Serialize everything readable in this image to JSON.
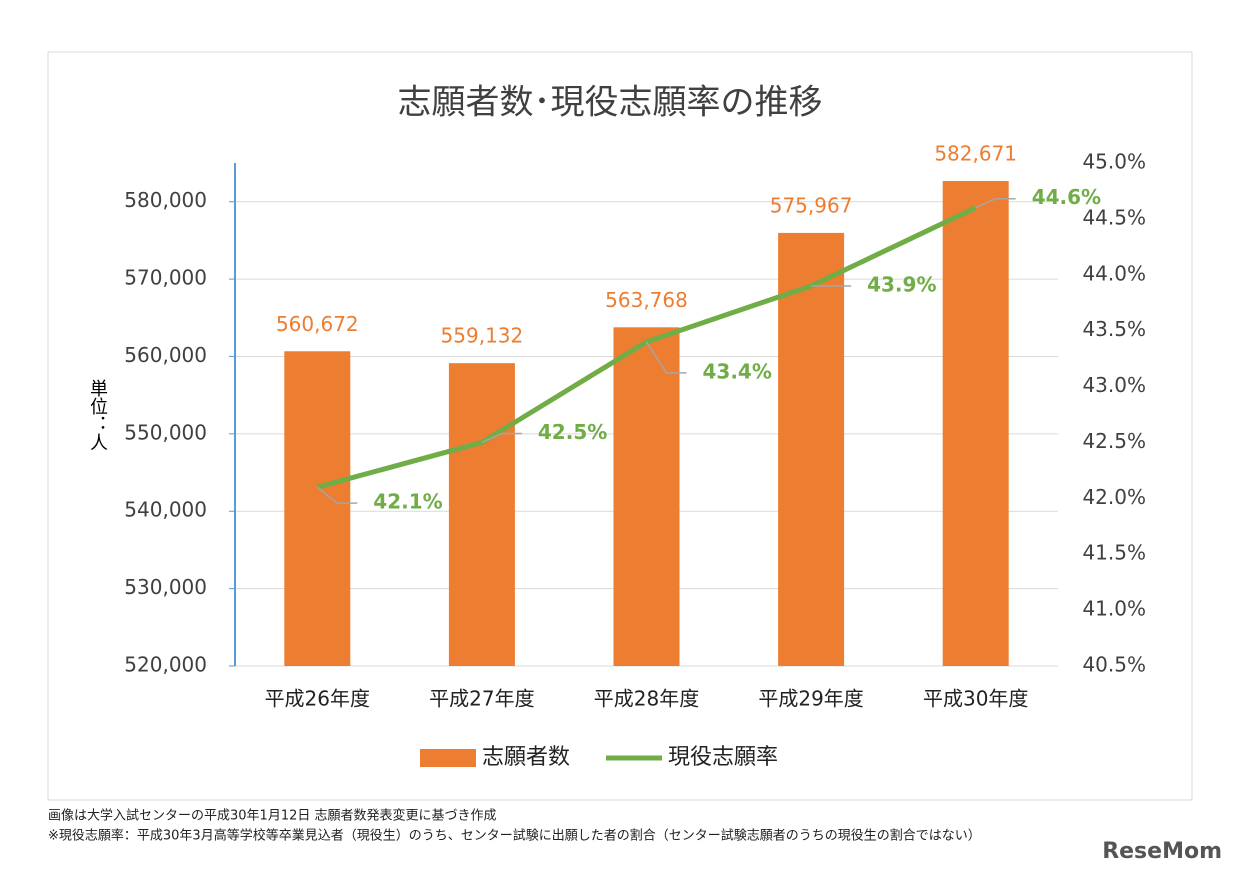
{
  "chart_data": {
    "type": "bar-line",
    "title": "志願者数･現役志願率の推移",
    "y_label": "単位：人",
    "categories": [
      "平成26年度",
      "平成27年度",
      "平成28年度",
      "平成29年度",
      "平成30年度"
    ],
    "series": [
      {
        "name": "志願者数",
        "type": "bar",
        "color": "#ED7D31",
        "values": [
          560672,
          559132,
          563768,
          575967,
          582671
        ],
        "value_labels": [
          "560,672",
          "559,132",
          "563,768",
          "575,967",
          "582,671"
        ]
      },
      {
        "name": "現役志願率",
        "type": "line",
        "axis": "y2",
        "color": "#70AD47",
        "values": [
          42.1,
          42.5,
          43.4,
          43.9,
          44.6
        ],
        "value_labels": [
          "42.1%",
          "42.5%",
          "43.4%",
          "43.9%",
          "44.6%"
        ]
      }
    ],
    "ylim": [
      520000,
      585000
    ],
    "yticks": [
      {
        "value": 520000,
        "label": "520,000"
      },
      {
        "value": 530000,
        "label": "530,000"
      },
      {
        "value": 540000,
        "label": "540,000"
      },
      {
        "value": 550000,
        "label": "550,000"
      },
      {
        "value": 560000,
        "label": "560,000"
      },
      {
        "value": 570000,
        "label": "570,000"
      },
      {
        "value": 580000,
        "label": "580,000"
      }
    ],
    "y2lim": [
      40.5,
      45.0
    ],
    "y2ticks": [
      {
        "value": 40.5,
        "label": "40.5%"
      },
      {
        "value": 41.0,
        "label": "41.0%"
      },
      {
        "value": 41.5,
        "label": "41.5%"
      },
      {
        "value": 42.0,
        "label": "42.0%"
      },
      {
        "value": 42.5,
        "label": "42.5%"
      },
      {
        "value": 43.0,
        "label": "43.0%"
      },
      {
        "value": 43.5,
        "label": "43.5%"
      },
      {
        "value": 44.0,
        "label": "44.0%"
      },
      {
        "value": 44.5,
        "label": "44.5%"
      },
      {
        "value": 45.0,
        "label": "45.0%"
      }
    ],
    "grid": true,
    "legend": "bottom"
  },
  "notes": [
    "画像は大学入試センターの平成30年1月12日 志願者数発表変更に基づき作成",
    "※現役志願率：平成30年3月高等学校等卒業見込者（現役生）のうち、センター試験に出願した者の割合（センター試験志願者のうちの現役生の割合ではない）"
  ],
  "logo": "ReseMom"
}
